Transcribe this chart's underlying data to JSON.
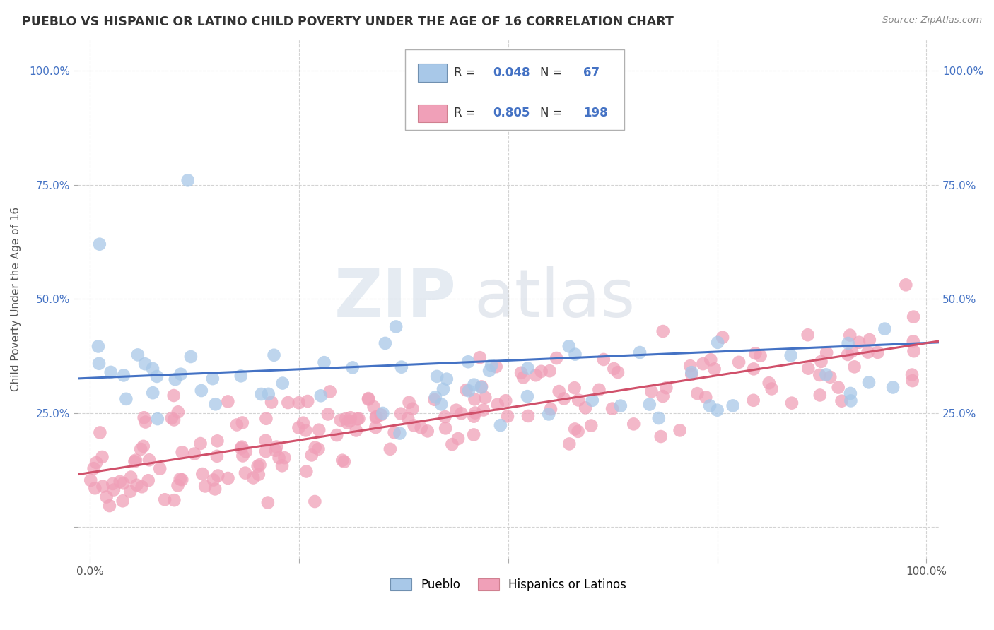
{
  "title": "PUEBLO VS HISPANIC OR LATINO CHILD POVERTY UNDER THE AGE OF 16 CORRELATION CHART",
  "source": "Source: ZipAtlas.com",
  "ylabel": "Child Poverty Under the Age of 16",
  "pueblo_color": "#a8c8e8",
  "hispanic_color": "#f0a0b8",
  "pueblo_line_color": "#4472c4",
  "hispanic_line_color": "#d0506a",
  "pueblo_R": 0.048,
  "pueblo_N": 67,
  "hispanic_R": 0.805,
  "hispanic_N": 198,
  "legend_value_color": "#4472c4",
  "legend_label1": "Pueblo",
  "legend_label2": "Hispanics or Latinos",
  "watermark_zip": "ZIP",
  "watermark_atlas": "atlas",
  "background_color": "#ffffff",
  "grid_color": "#c8c8c8",
  "tick_color": "#4472c4",
  "title_color": "#333333",
  "source_color": "#888888"
}
